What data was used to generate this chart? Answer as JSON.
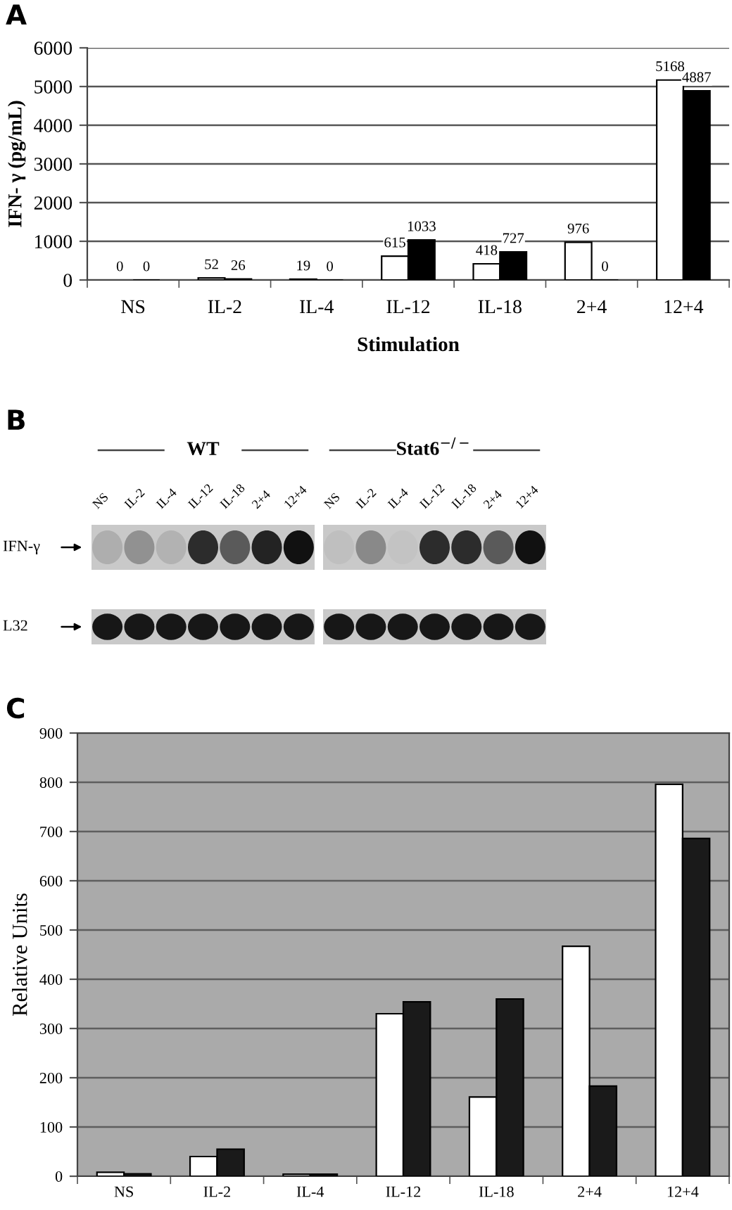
{
  "chart_data": [
    {
      "type": "bar",
      "title": "A",
      "xlabel": "Stimulation",
      "ylabel": "IFN- γ (pg/mL)",
      "categories": [
        "NS",
        "IL-2",
        "IL-4",
        "IL-12",
        "IL-18",
        "2+4",
        "12+4"
      ],
      "series": [
        {
          "color": "#ffffff",
          "values": [
            0,
            52,
            19,
            615,
            418,
            976,
            5168
          ]
        },
        {
          "color": "#000000",
          "values": [
            0,
            26,
            0,
            1033,
            727,
            0,
            4887
          ]
        }
      ],
      "ylim": [
        0,
        6000
      ],
      "yticks": [
        0,
        1000,
        2000,
        3000,
        4000,
        5000,
        6000
      ],
      "grid": "y",
      "data_labels": true
    },
    {
      "type": "other",
      "title": "B",
      "categories": [
        "NS",
        "IL-2",
        "IL-4",
        "IL-12",
        "IL-18",
        "2+4",
        "12+4"
      ],
      "y_categories": [
        "IFN-γ",
        "L32"
      ],
      "annotations": [
        "WT",
        "Stat6$^{−/−}$"
      ]
    },
    {
      "type": "bar",
      "title": "C",
      "ylabel": "Relative Units",
      "categories": [
        "NS",
        "IL-2",
        "IL-4",
        "IL-12",
        "IL-18",
        "2+4",
        "12+4"
      ],
      "series": [
        {
          "color": "#ffffff",
          "values": [
            8,
            40,
            4,
            330,
            161,
            467,
            796
          ]
        },
        {
          "color": "#1a1a1a",
          "values": [
            5,
            55,
            4,
            354,
            360,
            183,
            686
          ]
        }
      ],
      "ylim": [
        0,
        900
      ],
      "yticks": [
        0,
        100,
        200,
        300,
        400,
        500,
        600,
        700,
        800,
        900
      ],
      "grid": "y"
    }
  ]
}
